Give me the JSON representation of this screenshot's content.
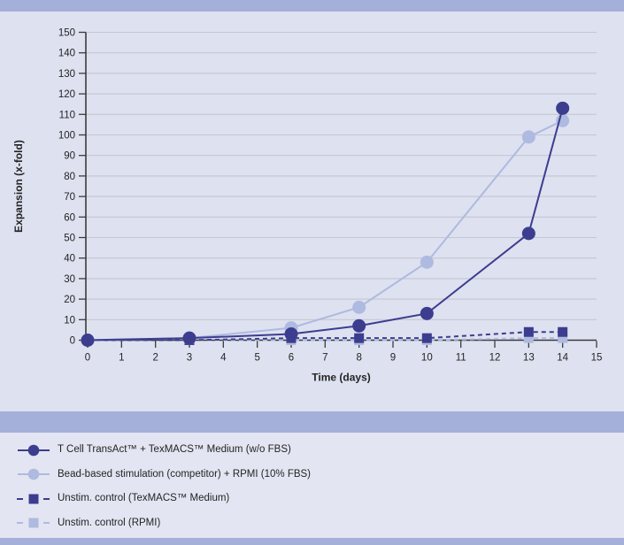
{
  "colors": {
    "dark_series": "#3c3d8f",
    "light_series": "#aebadf",
    "background": "#dee1f0",
    "legend_background": "#e3e5f2",
    "band": "#a4b0da",
    "gridline": "#c4c6d1",
    "axis": "#3b3b3b",
    "text": "#242424"
  },
  "chart_data": {
    "type": "line",
    "title": "",
    "xlabel": "Time (days)",
    "ylabel": "Expansion (x-fold)",
    "xlim": [
      0,
      15
    ],
    "ylim": [
      0,
      150
    ],
    "x_ticks": [
      0,
      1,
      2,
      3,
      4,
      5,
      6,
      7,
      8,
      9,
      10,
      11,
      12,
      13,
      14,
      15
    ],
    "y_ticks": [
      0,
      10,
      20,
      30,
      40,
      50,
      60,
      70,
      80,
      90,
      100,
      110,
      120,
      130,
      140,
      150
    ],
    "grid": true,
    "legend_position": "below",
    "x": [
      0,
      3,
      6,
      8,
      10,
      13,
      14
    ],
    "series": [
      {
        "id": "transact",
        "name": "T Cell TransAct™ + TexMACS™ Medium (w/o FBS)",
        "values": [
          0,
          1,
          3,
          7,
          13,
          52,
          113
        ],
        "marker": "circle",
        "line": "solid",
        "color": "dark"
      },
      {
        "id": "bead-based",
        "name": "Bead-based stimulation (competitor) + RPMI (10% FBS)",
        "values": [
          0,
          1,
          6,
          16,
          38,
          99,
          107
        ],
        "marker": "circle",
        "line": "solid",
        "color": "light"
      },
      {
        "id": "unstim-texmacs",
        "name": "Unstim. control (TexMACS™ Medium)",
        "values": [
          0,
          0,
          1,
          1,
          1,
          4,
          4
        ],
        "marker": "square",
        "line": "dashed",
        "color": "dark"
      },
      {
        "id": "unstim-rpmi",
        "name": "Unstim. control (RPMI)",
        "values": [
          0,
          0,
          0,
          0,
          0,
          1,
          1
        ],
        "marker": "square",
        "line": "dashed",
        "color": "light"
      }
    ]
  }
}
